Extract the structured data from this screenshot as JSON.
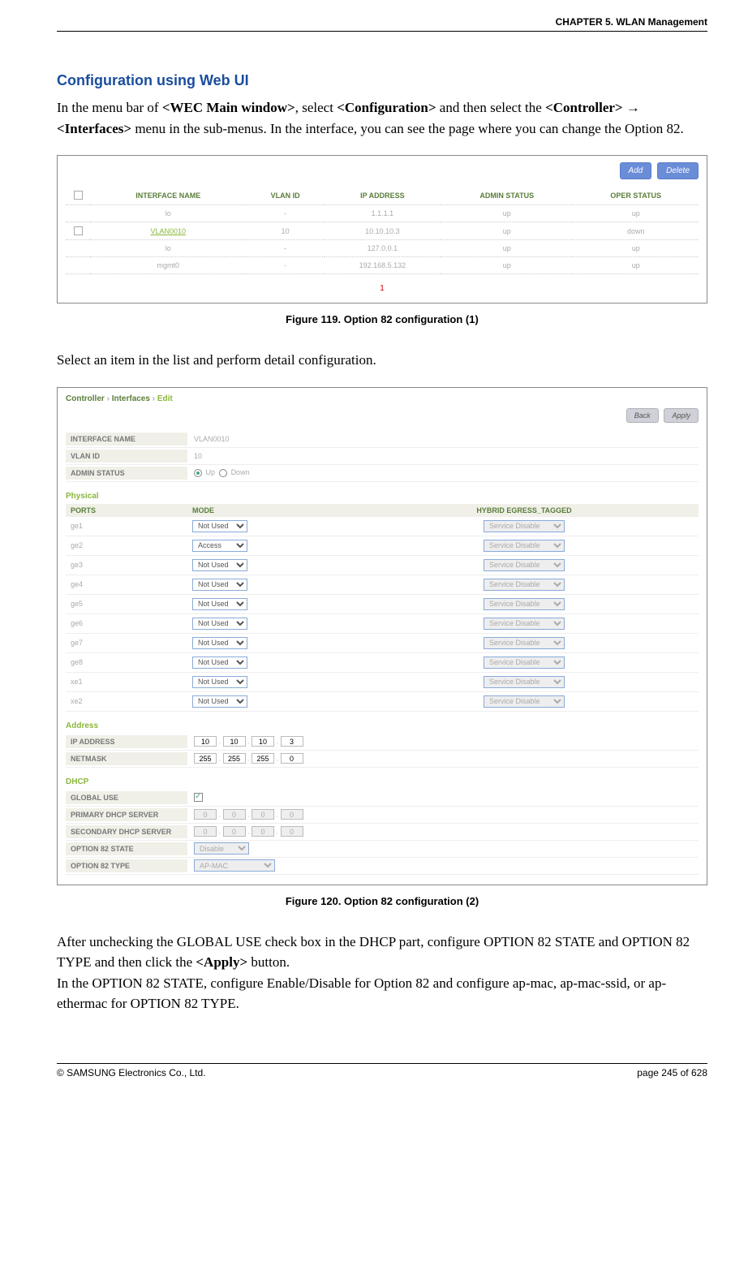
{
  "header": {
    "chapter": "CHAPTER 5. WLAN Management"
  },
  "section_title": "Configuration using Web UI",
  "intro": {
    "p1a": "In the menu bar of ",
    "p1b": "<WEC Main window>",
    "p1c": ", select ",
    "p1d": "<Configuration>",
    "p1e": " and then select the ",
    "p1f": "<Controller>",
    "p1g": " → ",
    "p1h": "<Interfaces>",
    "p1i": " menu in the sub-menus. In the interface, you can see the page where you can change the Option 82."
  },
  "fig1": {
    "btn_add": "Add",
    "btn_del": "Delete",
    "cols": {
      "name": "INTERFACE NAME",
      "vlan": "VLAN ID",
      "ip": "IP ADDRESS",
      "admin": "ADMIN STATUS",
      "oper": "OPER STATUS"
    },
    "rows": [
      {
        "cb": false,
        "name": "lo",
        "vlan": "-",
        "ip": "1.1.1.1",
        "admin": "up",
        "oper": "up",
        "link": false
      },
      {
        "cb": true,
        "name": "VLAN0010",
        "vlan": "10",
        "ip": "10.10.10.3",
        "admin": "up",
        "oper": "down",
        "link": true
      },
      {
        "cb": false,
        "name": "lo",
        "vlan": "-",
        "ip": "127.0.0.1",
        "admin": "up",
        "oper": "up",
        "link": false
      },
      {
        "cb": false,
        "name": "mgmt0",
        "vlan": "-",
        "ip": "192.168.5.132",
        "admin": "up",
        "oper": "up",
        "link": false
      }
    ],
    "page": "1",
    "caption": "Figure 119. Option 82 configuration (1)"
  },
  "mid_text": "Select an item in the list and perform detail configuration.",
  "fig2": {
    "crumb": {
      "a": "Controller",
      "b": "Interfaces",
      "c": "Edit"
    },
    "btn_back": "Back",
    "btn_apply": "Apply",
    "basic": {
      "ifname_l": "INTERFACE NAME",
      "ifname_v": "VLAN0010",
      "vlan_l": "VLAN ID",
      "vlan_v": "10",
      "admin_l": "ADMIN STATUS",
      "up": "Up",
      "down": "Down"
    },
    "physical": {
      "title": "Physical",
      "h_ports": "PORTS",
      "h_mode": "MODE",
      "h_het": "HYBRID EGRESS_TAGGED",
      "rows": [
        {
          "p": "ge1",
          "m": "Not Used",
          "h": "Service Disable"
        },
        {
          "p": "ge2",
          "m": "Access",
          "h": "Service Disable"
        },
        {
          "p": "ge3",
          "m": "Not Used",
          "h": "Service Disable"
        },
        {
          "p": "ge4",
          "m": "Not Used",
          "h": "Service Disable"
        },
        {
          "p": "ge5",
          "m": "Not Used",
          "h": "Service Disable"
        },
        {
          "p": "ge6",
          "m": "Not Used",
          "h": "Service Disable"
        },
        {
          "p": "ge7",
          "m": "Not Used",
          "h": "Service Disable"
        },
        {
          "p": "ge8",
          "m": "Not Used",
          "h": "Service Disable"
        },
        {
          "p": "xe1",
          "m": "Not Used",
          "h": "Service Disable"
        },
        {
          "p": "xe2",
          "m": "Not Used",
          "h": "Service Disable"
        }
      ]
    },
    "address": {
      "title": "Address",
      "ip_l": "IP ADDRESS",
      "ip": [
        "10",
        "10",
        "10",
        "3"
      ],
      "nm_l": "NETMASK",
      "nm": [
        "255",
        "255",
        "255",
        "0"
      ]
    },
    "dhcp": {
      "title": "DHCP",
      "gu_l": "GLOBAL USE",
      "pds_l": "PRIMARY DHCP SERVER",
      "pds": [
        "0",
        "0",
        "0",
        "0"
      ],
      "sds_l": "SECONDARY DHCP SERVER",
      "sds": [
        "0",
        "0",
        "0",
        "0"
      ],
      "o82s_l": "OPTION 82 STATE",
      "o82s_v": "Disable",
      "o82t_l": "OPTION 82 TYPE",
      "o82t_v": "AP-MAC"
    },
    "caption": "Figure 120. Option 82 configuration (2)"
  },
  "after": {
    "p1a": "After unchecking the GLOBAL USE check box in the DHCP part, configure OPTION 82 STATE and OPTION 82 TYPE and then click the ",
    "p1b": "<Apply>",
    "p1c": " button.",
    "p2": "In the OPTION 82 STATE, configure Enable/Disable for Option 82 and configure ap-mac, ap-mac-ssid, or ap-ethermac for OPTION 82 TYPE."
  },
  "footer": {
    "left": "© SAMSUNG Electronics Co., Ltd.",
    "right": "page 245 of 628"
  }
}
